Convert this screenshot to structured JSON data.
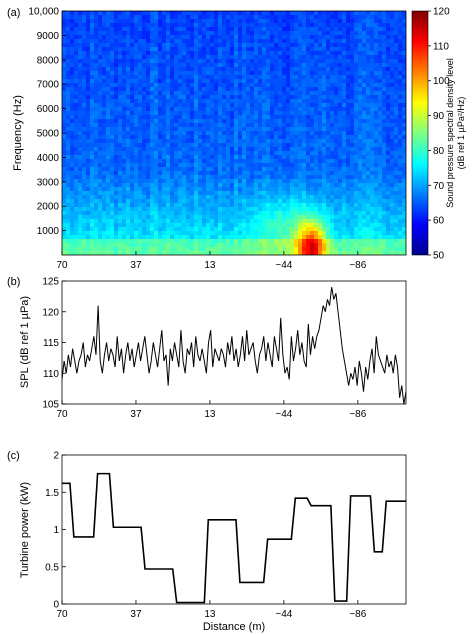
{
  "chart_data": [
    {
      "panel": "(a)",
      "type": "heatmap",
      "ylabel": "Frequency (Hz)",
      "yticks": [
        "1000",
        "2000",
        "3000",
        "4000",
        "5000",
        "6000",
        "7000",
        "8000",
        "9000",
        "10,000"
      ],
      "ylim": [
        0,
        10000
      ],
      "xticks": [
        "70",
        "37",
        "13",
        "−44",
        "−86"
      ],
      "colorbar": {
        "label_line1": "Sound pressure spectral density level",
        "label_line2": "(dB ref 1 µPa²/Hz)",
        "ticks": [
          "50",
          "60",
          "70",
          "80",
          "90",
          "100",
          "110",
          "120"
        ],
        "range": [
          50,
          120
        ]
      },
      "background_level_db": 62,
      "hotspot_level_db": 105
    },
    {
      "panel": "(b)",
      "type": "line",
      "ylabel": "SPL (dB ref 1 µPa)",
      "yticks": [
        "105",
        "110",
        "115",
        "120",
        "125"
      ],
      "ylim": [
        105,
        125
      ],
      "xticks": [
        "70",
        "37",
        "13",
        "−44",
        "−86"
      ],
      "values": [
        109,
        112,
        110,
        113,
        111,
        114,
        112,
        110,
        112,
        113,
        115,
        111,
        113,
        112,
        114,
        116,
        113,
        121,
        112,
        110,
        113,
        115,
        112,
        114,
        113,
        111,
        116,
        112,
        114,
        110,
        113,
        115,
        112,
        114,
        111,
        113,
        115,
        112,
        114,
        116,
        113,
        110,
        112,
        115,
        113,
        111,
        114,
        117,
        112,
        113,
        108,
        114,
        112,
        115,
        113,
        111,
        117,
        112,
        110,
        114,
        113,
        115,
        111,
        116,
        113,
        112,
        114,
        112,
        110,
        115,
        117,
        111,
        114,
        113,
        112,
        114,
        113,
        111,
        115,
        113,
        116,
        112,
        114,
        111,
        113,
        116,
        112,
        117,
        113,
        114,
        115,
        112,
        110,
        113,
        114,
        116,
        112,
        115,
        113,
        111,
        116,
        114,
        112,
        119,
        113,
        110,
        111,
        109,
        116,
        112,
        114,
        117,
        113,
        115,
        112,
        111,
        118,
        113,
        116,
        114,
        116,
        117,
        119,
        121,
        120,
        122,
        121,
        124,
        122,
        123,
        120,
        117,
        114,
        112,
        110,
        108,
        110,
        109,
        111,
        108,
        112,
        110,
        107,
        111,
        109,
        112,
        114,
        110,
        116,
        113,
        112,
        111,
        110,
        113,
        111,
        112,
        110,
        113,
        111,
        106,
        108,
        105,
        107
      ]
    },
    {
      "panel": "(c)",
      "type": "line",
      "ylabel": "Turbine power (kW)",
      "xlabel": "Distance (m)",
      "yticks": [
        "0",
        "0.5",
        "1",
        "1.5",
        "2"
      ],
      "ylim": [
        0,
        2
      ],
      "xticks": [
        "70",
        "37",
        "13",
        "−44",
        "−86"
      ],
      "values": [
        1.62,
        1.62,
        1.62,
        0.9,
        0.9,
        0.9,
        0.9,
        0.9,
        0.9,
        1.75,
        1.75,
        1.75,
        1.75,
        1.03,
        1.03,
        1.03,
        1.03,
        1.03,
        1.03,
        1.03,
        1.03,
        0.47,
        0.47,
        0.47,
        0.47,
        0.47,
        0.47,
        0.47,
        0.47,
        0.02,
        0.02,
        0.02,
        0.02,
        0.02,
        0.02,
        0.02,
        0.02,
        1.13,
        1.13,
        1.13,
        1.13,
        1.13,
        1.13,
        1.13,
        1.13,
        0.29,
        0.29,
        0.29,
        0.29,
        0.29,
        0.29,
        0.29,
        0.87,
        0.87,
        0.87,
        0.87,
        0.87,
        0.87,
        0.87,
        1.42,
        1.42,
        1.42,
        1.42,
        1.32,
        1.32,
        1.32,
        1.32,
        1.32,
        1.32,
        0.04,
        0.04,
        0.04,
        0.04,
        1.45,
        1.45,
        1.45,
        1.45,
        1.45,
        1.45,
        0.7,
        0.7,
        0.7,
        1.38,
        1.38,
        1.38,
        1.38,
        1.38,
        1.38
      ]
    }
  ]
}
